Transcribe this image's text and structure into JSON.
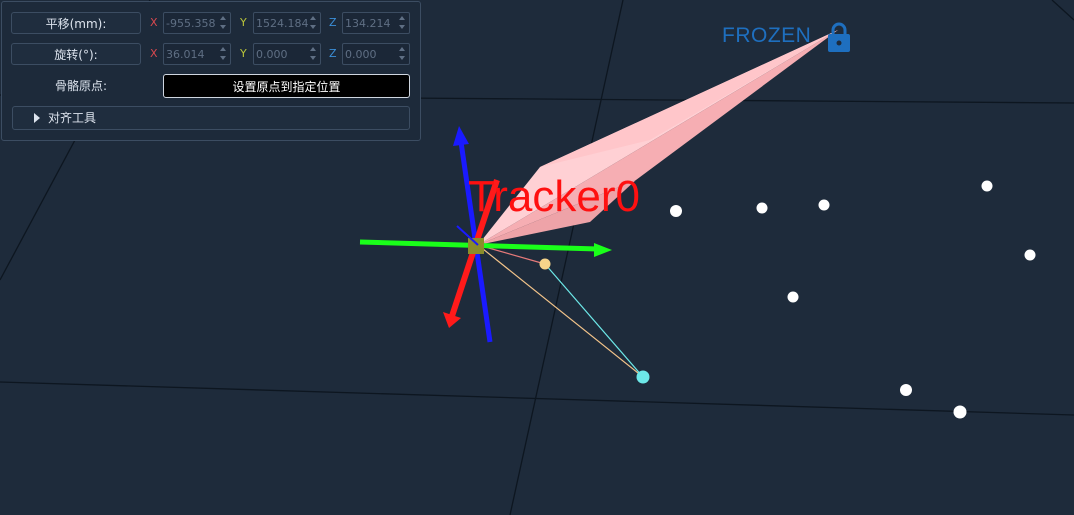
{
  "panel": {
    "translate": {
      "label": "平移(mm):",
      "x_axis": "X",
      "x_value": "-955.358",
      "y_axis": "Y",
      "y_value": "1524.184",
      "z_axis": "Z",
      "z_value": "134.214"
    },
    "rotate": {
      "label": "旋转(°):",
      "x_axis": "X",
      "x_value": "36.014",
      "y_axis": "Y",
      "y_value": "0.000",
      "z_axis": "Z",
      "z_value": "0.000"
    },
    "bone_origin": {
      "label": "骨骼原点:",
      "button": "设置原点到指定位置"
    },
    "align_tools": {
      "label": "对齐工具"
    }
  },
  "viewport": {
    "frozen_label": "FROZEN",
    "lock_icon": "lock-icon",
    "tracker_label": "Tracker0",
    "colors": {
      "background": "#1e2b3b",
      "grid": "#0d1620",
      "axis_x": "#ff1a1a",
      "axis_y": "#1aff1a",
      "axis_z": "#1a1aff",
      "tracker_body": "#ffc0c4",
      "frozen": "#1e6fbf",
      "marker": "#ffffff",
      "joint_small": "#f5d48a",
      "joint_cyan": "#6de8e8"
    }
  }
}
